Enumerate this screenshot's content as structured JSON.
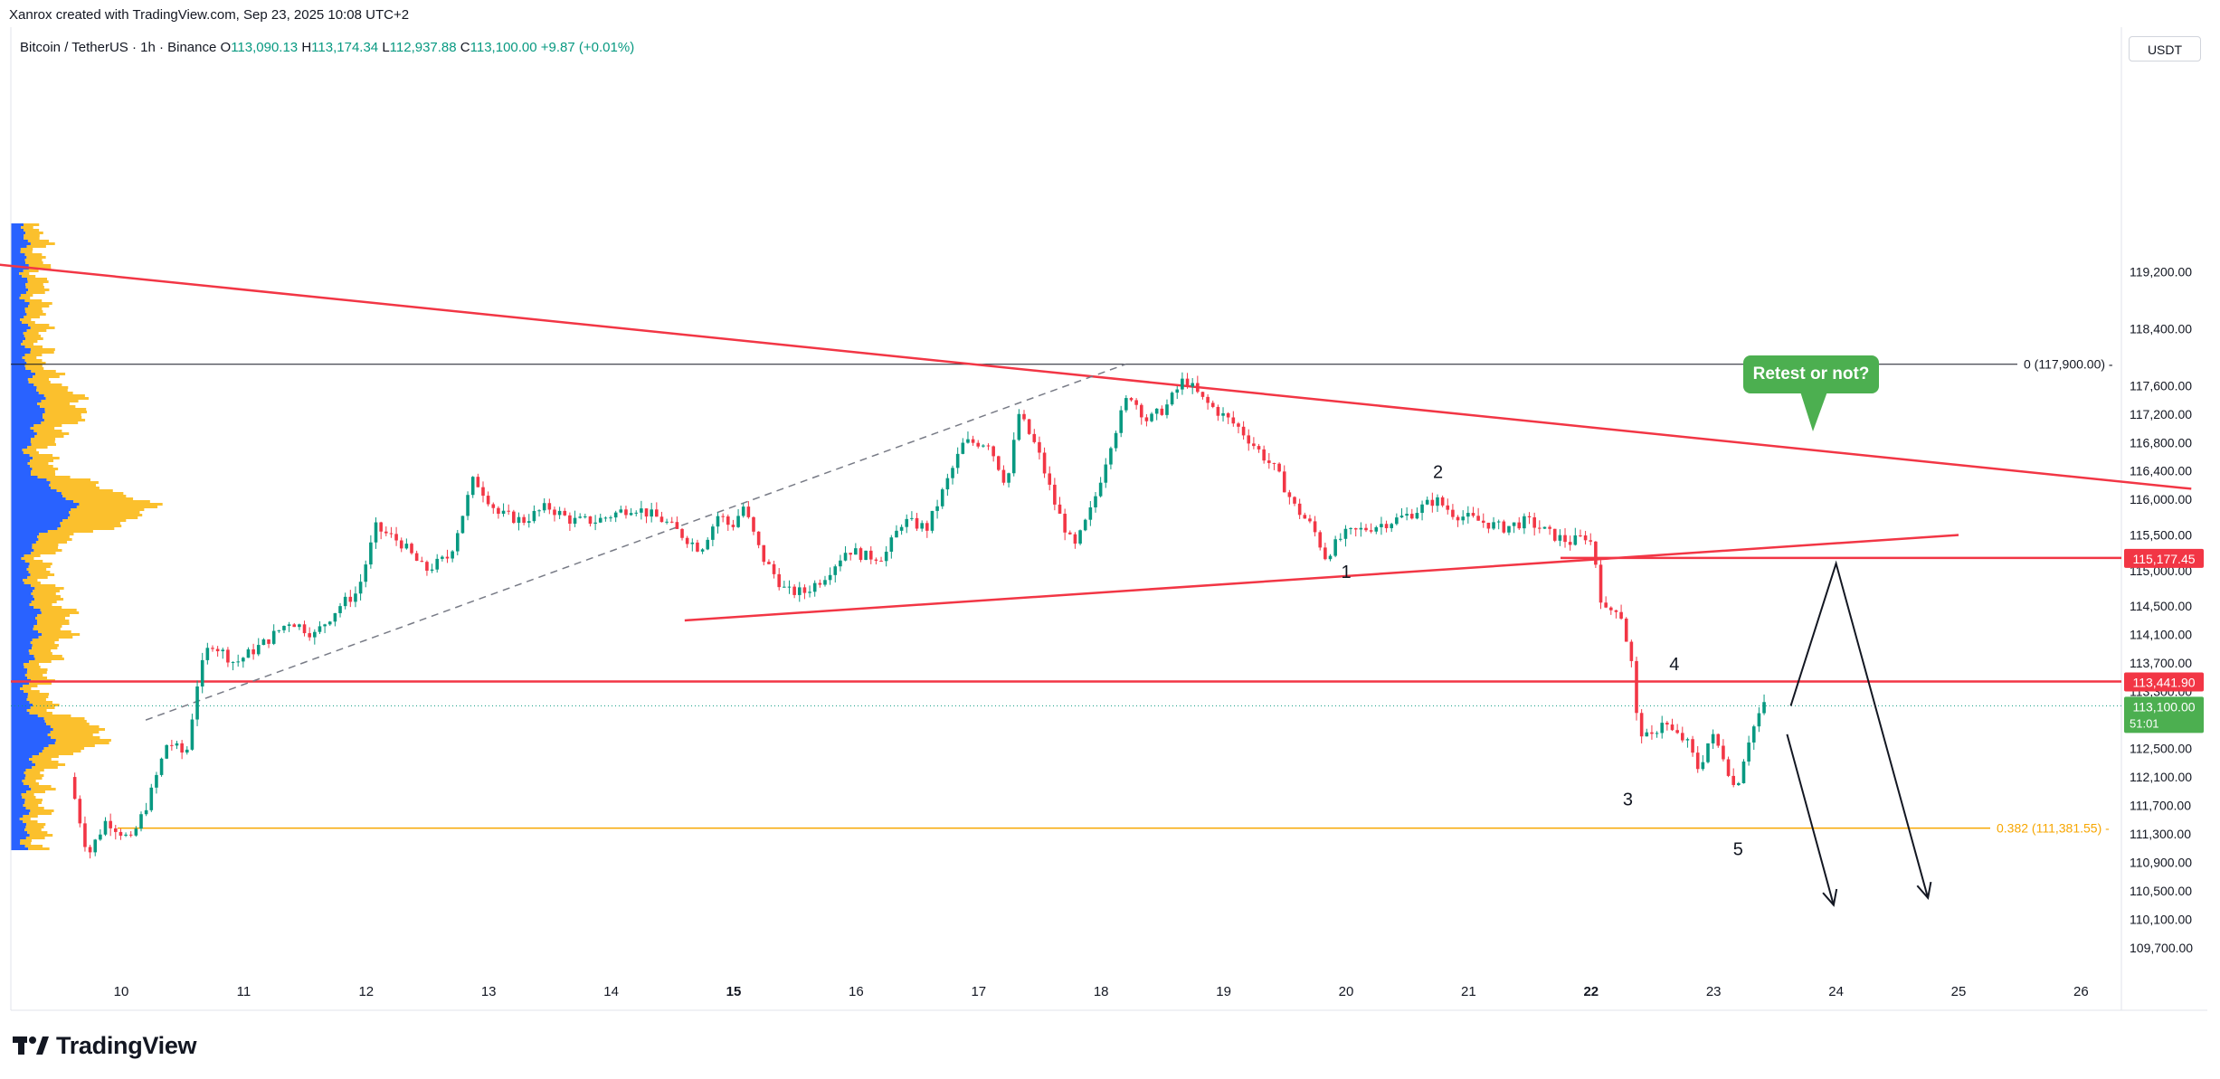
{
  "header": {
    "attribution": "Xanrox created with TradingView.com, Sep 23, 2025 10:08 UTC+2",
    "symbol": "Bitcoin / TetherUS · 1h · Binance",
    "open_label": "O",
    "open": "113,090.13",
    "high_label": "H",
    "high": "113,174.34",
    "low_label": "L",
    "low": "112,937.88",
    "close_label": "C",
    "close": "113,100.00",
    "change": "+9.87 (+0.01%)",
    "currency": "USDT"
  },
  "logo": {
    "text": "TradingView"
  },
  "annotations": {
    "bubble": "Retest or not?",
    "fib_top": "0 (117,900.00)",
    "fib_382": "0.382 (111,381.55)",
    "wave_labels": [
      "1",
      "2",
      "3",
      "4",
      "5"
    ]
  },
  "price_tags": {
    "resistance_upper": "115,177.45",
    "resistance_lower": "113,441.90",
    "last_price": "113,100.00",
    "countdown": "51:01"
  },
  "colors": {
    "up": "#089981",
    "down": "#f23645",
    "trend": "#f23645",
    "fib": "#f7a600",
    "vp_up": "#2962ff",
    "vp_down": "#fbc02d",
    "bubble": "#4caf50"
  },
  "chart_data": {
    "type": "candlestick",
    "title": "Bitcoin / TetherUS · 1h · Binance",
    "y_ticks": [
      119200,
      118400,
      117600,
      117200,
      116800,
      116400,
      116000,
      115500,
      115000,
      114500,
      114100,
      113700,
      113300,
      112500,
      112100,
      111700,
      111300,
      110900,
      110500,
      110100,
      109700
    ],
    "y_tick_labels": [
      "119,200.00",
      "118,400.00",
      "117,600.00",
      "117,200.00",
      "116,800.00",
      "116,400.00",
      "116,000.00",
      "115,500.00",
      "115,000.00",
      "114,500.00",
      "114,100.00",
      "113,700.00",
      "113,300.00",
      "112,500.00",
      "112,100.00",
      "111,700.00",
      "111,300.00",
      "110,900.00",
      "110,500.00",
      "110,100.00",
      "109,700.00"
    ],
    "x_ticks": [
      "10",
      "11",
      "12",
      "13",
      "14",
      "15",
      "16",
      "17",
      "18",
      "19",
      "20",
      "21",
      "22",
      "23",
      "24",
      "25",
      "26"
    ],
    "x_bold": [
      "15",
      "22"
    ],
    "levels": {
      "fib_0": 117900,
      "fib_0382": 111381.55,
      "resistance_upper": 115177.45,
      "resistance_lower": 113441.9,
      "last": 113100
    },
    "price_path": [
      [
        9.6,
        112100
      ],
      [
        9.75,
        111000
      ],
      [
        9.9,
        111500
      ],
      [
        10.1,
        111200
      ],
      [
        10.25,
        111800
      ],
      [
        10.4,
        112600
      ],
      [
        10.55,
        112400
      ],
      [
        10.65,
        113500
      ],
      [
        10.75,
        114000
      ],
      [
        10.95,
        113700
      ],
      [
        11.2,
        114000
      ],
      [
        11.4,
        114300
      ],
      [
        11.6,
        114100
      ],
      [
        11.8,
        114500
      ],
      [
        11.95,
        114700
      ],
      [
        12.1,
        115600
      ],
      [
        12.3,
        115400
      ],
      [
        12.5,
        115000
      ],
      [
        12.7,
        115200
      ],
      [
        12.9,
        116300
      ],
      [
        13.1,
        115800
      ],
      [
        13.3,
        115700
      ],
      [
        13.5,
        115900
      ],
      [
        13.7,
        115700
      ],
      [
        13.9,
        115700
      ],
      [
        14.2,
        115900
      ],
      [
        14.45,
        115700
      ],
      [
        14.6,
        115500
      ],
      [
        14.75,
        115300
      ],
      [
        14.9,
        115800
      ],
      [
        15.0,
        115600
      ],
      [
        15.1,
        115900
      ],
      [
        15.25,
        115200
      ],
      [
        15.45,
        114700
      ],
      [
        15.6,
        114700
      ],
      [
        15.75,
        114900
      ],
      [
        15.95,
        115300
      ],
      [
        16.1,
        115200
      ],
      [
        16.25,
        115200
      ],
      [
        16.4,
        115700
      ],
      [
        16.6,
        115600
      ],
      [
        16.75,
        116200
      ],
      [
        16.9,
        116800
      ],
      [
        17.1,
        116800
      ],
      [
        17.25,
        116200
      ],
      [
        17.35,
        117200
      ],
      [
        17.5,
        116700
      ],
      [
        17.65,
        115900
      ],
      [
        17.8,
        115300
      ],
      [
        17.95,
        115900
      ],
      [
        18.1,
        116800
      ],
      [
        18.25,
        117500
      ],
      [
        18.4,
        117100
      ],
      [
        18.55,
        117300
      ],
      [
        18.7,
        117700
      ],
      [
        18.85,
        117400
      ],
      [
        19.0,
        117200
      ],
      [
        19.15,
        117000
      ],
      [
        19.3,
        116700
      ],
      [
        19.45,
        116400
      ],
      [
        19.6,
        115900
      ],
      [
        19.75,
        115600
      ],
      [
        19.85,
        115200
      ],
      [
        20.0,
        115500
      ],
      [
        20.2,
        115600
      ],
      [
        20.4,
        115700
      ],
      [
        20.55,
        115800
      ],
      [
        20.75,
        116000
      ],
      [
        20.9,
        115800
      ],
      [
        21.1,
        115700
      ],
      [
        21.3,
        115600
      ],
      [
        21.5,
        115700
      ],
      [
        21.7,
        115500
      ],
      [
        21.85,
        115400
      ],
      [
        22.0,
        115500
      ],
      [
        22.05,
        115200
      ],
      [
        22.12,
        114400
      ],
      [
        22.25,
        114500
      ],
      [
        22.35,
        113700
      ],
      [
        22.4,
        112800
      ],
      [
        22.5,
        112600
      ],
      [
        22.6,
        112900
      ],
      [
        22.7,
        112700
      ],
      [
        22.8,
        112600
      ],
      [
        22.9,
        112200
      ],
      [
        23.0,
        112700
      ],
      [
        23.1,
        112400
      ],
      [
        23.2,
        111900
      ],
      [
        23.3,
        112600
      ],
      [
        23.42,
        113100
      ]
    ],
    "trendlines": [
      {
        "name": "upper",
        "from": [
          9.0,
          119300
        ],
        "to": [
          26.9,
          116150
        ]
      },
      {
        "name": "lower",
        "from": [
          14.6,
          114300
        ],
        "to": [
          25.0,
          115500
        ]
      }
    ],
    "dashed_channel": {
      "from": [
        10.2,
        112900
      ],
      "to": [
        18.2,
        117900
      ]
    },
    "projections": [
      {
        "name": "retest",
        "points": [
          [
            23.63,
            113100
          ],
          [
            24.0,
            115100
          ],
          [
            24.75,
            110400
          ]
        ]
      },
      {
        "name": "direct",
        "points": [
          [
            23.6,
            112700
          ],
          [
            23.98,
            110300
          ]
        ]
      }
    ],
    "wave_points": [
      [
        20.0,
        114900
      ],
      [
        20.75,
        116300
      ],
      [
        22.3,
        111700
      ],
      [
        22.68,
        113600
      ],
      [
        23.2,
        111000
      ]
    ]
  }
}
